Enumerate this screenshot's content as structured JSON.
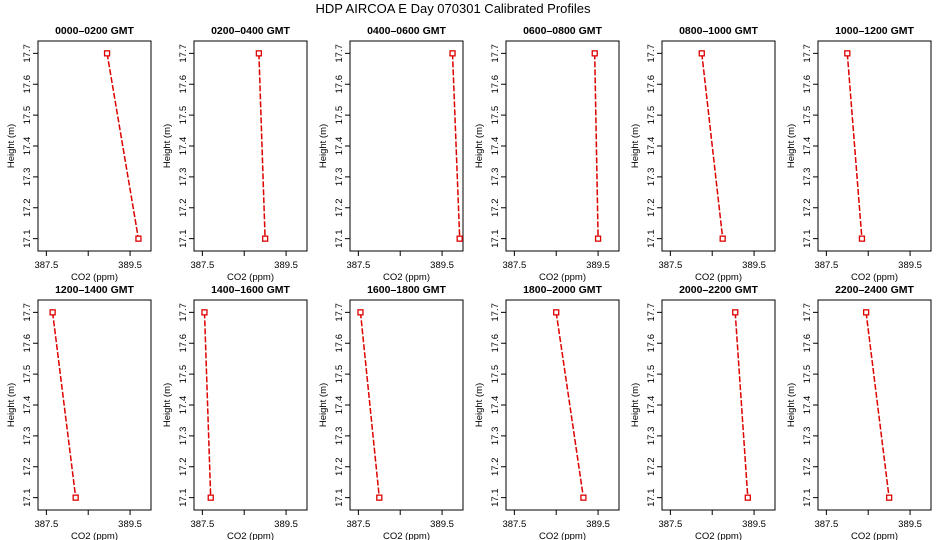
{
  "figure": {
    "title": "HDP  AIRCOA E  Day 070301  Calibrated Profiles",
    "line_color": "#dd0000",
    "marker_color": "#dd0000"
  },
  "chart_data": [
    {
      "type": "line",
      "title": "0000–0200 GMT",
      "xlabel": "CO2 (ppm)",
      "ylabel": "Height (m)",
      "xlim": [
        387.3,
        390.0
      ],
      "ylim": [
        17.06,
        17.74
      ],
      "xticks": [
        "387.5",
        "389.5"
      ],
      "yticks": [
        "17.1",
        "17.2",
        "17.3",
        "17.4",
        "17.5",
        "17.6",
        "17.7"
      ],
      "series": [
        {
          "x": [
            388.95,
            389.7
          ],
          "y": [
            17.7,
            17.1
          ]
        }
      ]
    },
    {
      "type": "line",
      "title": "0200–0400 GMT",
      "xlabel": "CO2 (ppm)",
      "ylabel": "Height (m)",
      "xlim": [
        387.3,
        390.0
      ],
      "ylim": [
        17.06,
        17.74
      ],
      "xticks": [
        "387.5",
        "389.5"
      ],
      "yticks": [
        "17.1",
        "17.2",
        "17.3",
        "17.4",
        "17.5",
        "17.6",
        "17.7"
      ],
      "series": [
        {
          "x": [
            388.85,
            389.0
          ],
          "y": [
            17.7,
            17.1
          ]
        }
      ]
    },
    {
      "type": "line",
      "title": "0400–0600 GMT",
      "xlabel": "CO2 (ppm)",
      "ylabel": "Height (m)",
      "xlim": [
        387.3,
        390.0
      ],
      "ylim": [
        17.06,
        17.74
      ],
      "xticks": [
        "387.5",
        "389.5"
      ],
      "yticks": [
        "17.1",
        "17.2",
        "17.3",
        "17.4",
        "17.5",
        "17.6",
        "17.7"
      ],
      "series": [
        {
          "x": [
            389.75,
            389.92
          ],
          "y": [
            17.7,
            17.1
          ]
        }
      ]
    },
    {
      "type": "line",
      "title": "0600–0800 GMT",
      "xlabel": "CO2 (ppm)",
      "ylabel": "Height (m)",
      "xlim": [
        387.3,
        390.0
      ],
      "ylim": [
        17.06,
        17.74
      ],
      "xticks": [
        "387.5",
        "389.5"
      ],
      "yticks": [
        "17.1",
        "17.2",
        "17.3",
        "17.4",
        "17.5",
        "17.6",
        "17.7"
      ],
      "series": [
        {
          "x": [
            389.42,
            389.5
          ],
          "y": [
            17.7,
            17.1
          ]
        }
      ]
    },
    {
      "type": "line",
      "title": "0800–1000 GMT",
      "xlabel": "CO2 (ppm)",
      "ylabel": "Height (m)",
      "xlim": [
        387.3,
        390.0
      ],
      "ylim": [
        17.06,
        17.74
      ],
      "xticks": [
        "387.5",
        "389.5"
      ],
      "yticks": [
        "17.1",
        "17.2",
        "17.3",
        "17.4",
        "17.5",
        "17.6",
        "17.7"
      ],
      "series": [
        {
          "x": [
            388.25,
            388.75
          ],
          "y": [
            17.7,
            17.1
          ]
        }
      ]
    },
    {
      "type": "line",
      "title": "1000–1200 GMT",
      "xlabel": "CO2 (ppm)",
      "ylabel": "Height (m)",
      "xlim": [
        387.3,
        390.0
      ],
      "ylim": [
        17.06,
        17.74
      ],
      "xticks": [
        "387.5",
        "389.5"
      ],
      "yticks": [
        "17.1",
        "17.2",
        "17.3",
        "17.4",
        "17.5",
        "17.6",
        "17.7"
      ],
      "series": [
        {
          "x": [
            388.0,
            388.35
          ],
          "y": [
            17.7,
            17.1
          ]
        }
      ]
    },
    {
      "type": "line",
      "title": "1200–1400 GMT",
      "xlabel": "CO2 (ppm)",
      "ylabel": "Height (m)",
      "xlim": [
        387.3,
        390.0
      ],
      "ylim": [
        17.06,
        17.74
      ],
      "xticks": [
        "387.5",
        "389.5"
      ],
      "yticks": [
        "17.1",
        "17.2",
        "17.3",
        "17.4",
        "17.5",
        "17.6",
        "17.7"
      ],
      "series": [
        {
          "x": [
            387.65,
            388.2
          ],
          "y": [
            17.7,
            17.1
          ]
        }
      ]
    },
    {
      "type": "line",
      "title": "1400–1600 GMT",
      "xlabel": "CO2 (ppm)",
      "ylabel": "Height (m)",
      "xlim": [
        387.3,
        390.0
      ],
      "ylim": [
        17.06,
        17.74
      ],
      "xticks": [
        "387.5",
        "389.5"
      ],
      "yticks": [
        "17.1",
        "17.2",
        "17.3",
        "17.4",
        "17.5",
        "17.6",
        "17.7"
      ],
      "series": [
        {
          "x": [
            387.55,
            387.7
          ],
          "y": [
            17.7,
            17.1
          ]
        }
      ]
    },
    {
      "type": "line",
      "title": "1600–1800 GMT",
      "xlabel": "CO2 (ppm)",
      "ylabel": "Height (m)",
      "xlim": [
        387.3,
        390.0
      ],
      "ylim": [
        17.06,
        17.74
      ],
      "xticks": [
        "387.5",
        "389.5"
      ],
      "yticks": [
        "17.1",
        "17.2",
        "17.3",
        "17.4",
        "17.5",
        "17.6",
        "17.7"
      ],
      "series": [
        {
          "x": [
            387.55,
            388.0
          ],
          "y": [
            17.7,
            17.1
          ]
        }
      ]
    },
    {
      "type": "line",
      "title": "1800–2000 GMT",
      "xlabel": "CO2 (ppm)",
      "ylabel": "Height (m)",
      "xlim": [
        387.3,
        390.0
      ],
      "ylim": [
        17.06,
        17.74
      ],
      "xticks": [
        "387.5",
        "389.5"
      ],
      "yticks": [
        "17.1",
        "17.2",
        "17.3",
        "17.4",
        "17.5",
        "17.6",
        "17.7"
      ],
      "series": [
        {
          "x": [
            388.5,
            389.15
          ],
          "y": [
            17.7,
            17.1
          ]
        }
      ]
    },
    {
      "type": "line",
      "title": "2000–2200 GMT",
      "xlabel": "CO2 (ppm)",
      "ylabel": "Height (m)",
      "xlim": [
        387.3,
        390.0
      ],
      "ylim": [
        17.06,
        17.74
      ],
      "xticks": [
        "387.5",
        "389.5"
      ],
      "yticks": [
        "17.1",
        "17.2",
        "17.3",
        "17.4",
        "17.5",
        "17.6",
        "17.7"
      ],
      "series": [
        {
          "x": [
            389.05,
            389.35
          ],
          "y": [
            17.7,
            17.1
          ]
        }
      ]
    },
    {
      "type": "line",
      "title": "2200–2400 GMT",
      "xlabel": "CO2 (ppm)",
      "ylabel": "Height (m)",
      "xlim": [
        387.3,
        390.0
      ],
      "ylim": [
        17.06,
        17.74
      ],
      "xticks": [
        "387.5",
        "389.5"
      ],
      "yticks": [
        "17.1",
        "17.2",
        "17.3",
        "17.4",
        "17.5",
        "17.6",
        "17.7"
      ],
      "series": [
        {
          "x": [
            388.45,
            389.0
          ],
          "y": [
            17.7,
            17.1
          ]
        }
      ]
    }
  ]
}
